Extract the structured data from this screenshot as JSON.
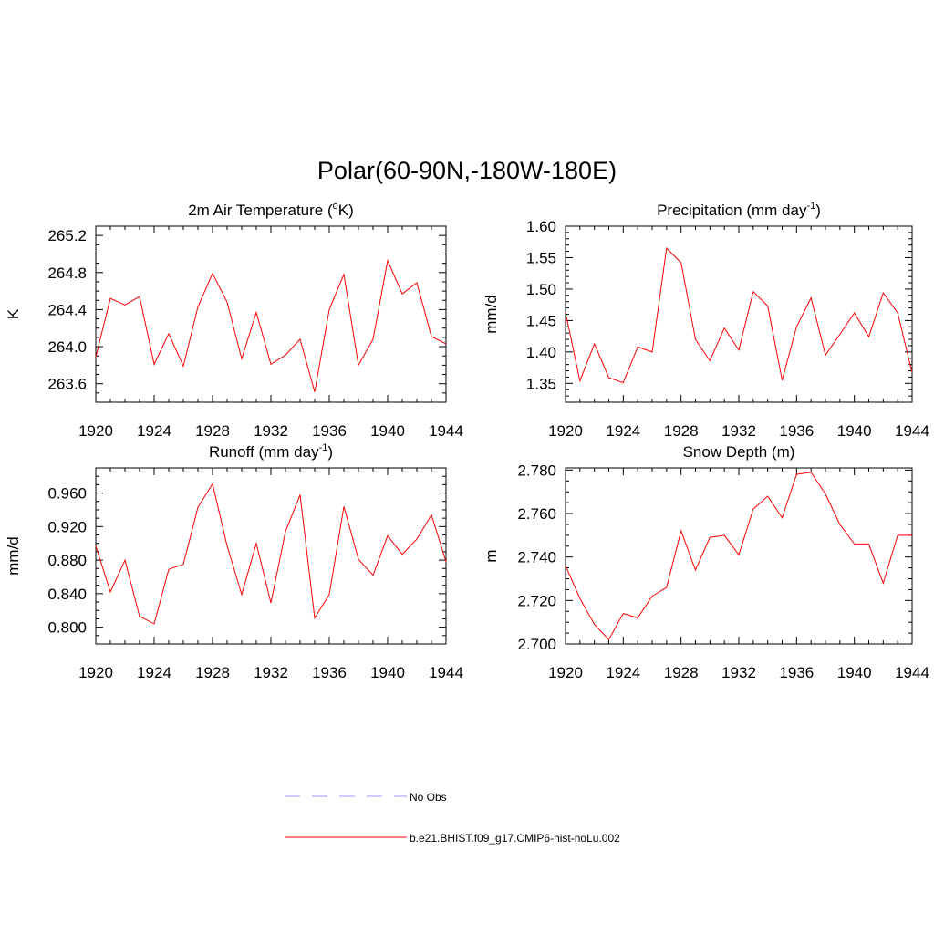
{
  "figure_title": "Polar(60-90N,-180W-180E)",
  "legend": [
    {
      "label": "No Obs",
      "color": "#9999ff",
      "style": "dashed"
    },
    {
      "label": "b.e21.BHIST.f09_g17.CMIP6-hist-noLu.002",
      "color": "#ff0000",
      "style": "solid"
    }
  ],
  "chart_data": [
    {
      "type": "line",
      "title": "2m Air Temperature (",
      "title_sup": "o",
      "title_suffix": "K)",
      "ylabel": "K",
      "xlim": [
        1920,
        1944
      ],
      "ylim": [
        263.4,
        265.3
      ],
      "xticks": [
        1920,
        1924,
        1928,
        1932,
        1936,
        1940,
        1944
      ],
      "xtick_labels": [
        "1920",
        "1924",
        "1928",
        "1932",
        "1936",
        "1940",
        "1944"
      ],
      "yticks": [
        263.6,
        264.0,
        264.4,
        264.8,
        265.2
      ],
      "ytick_labels": [
        "263.6",
        "264.0",
        "264.4",
        "264.8",
        "265.2"
      ],
      "yminor": 0.1,
      "series": [
        {
          "color": "#ff0000",
          "x": [
            1920,
            1921,
            1922,
            1923,
            1924,
            1925,
            1926,
            1927,
            1928,
            1929,
            1930,
            1931,
            1932,
            1933,
            1934,
            1935,
            1936,
            1937,
            1938,
            1939,
            1940,
            1941,
            1942,
            1943,
            1944
          ],
          "y": [
            263.89,
            264.52,
            264.45,
            264.54,
            263.81,
            264.14,
            263.79,
            264.43,
            264.79,
            264.48,
            263.87,
            264.37,
            263.81,
            263.91,
            264.08,
            263.51,
            264.4,
            264.78,
            263.8,
            264.08,
            264.93,
            264.57,
            264.69,
            264.11,
            264.03
          ]
        }
      ]
    },
    {
      "type": "line",
      "title": "Precipitation (mm day",
      "title_sup": "-1",
      "title_suffix": ")",
      "ylabel": "mm/d",
      "xlim": [
        1920,
        1944
      ],
      "ylim": [
        1.32,
        1.6
      ],
      "xticks": [
        1920,
        1924,
        1928,
        1932,
        1936,
        1940,
        1944
      ],
      "xtick_labels": [
        "1920",
        "1924",
        "1928",
        "1932",
        "1936",
        "1940",
        "1944"
      ],
      "yticks": [
        1.35,
        1.4,
        1.45,
        1.5,
        1.55,
        1.6
      ],
      "ytick_labels": [
        "1.35",
        "1.40",
        "1.45",
        "1.50",
        "1.55",
        "1.60"
      ],
      "yminor": 0.01,
      "series": [
        {
          "color": "#ff0000",
          "x": [
            1920,
            1921,
            1922,
            1923,
            1924,
            1925,
            1926,
            1927,
            1928,
            1929,
            1930,
            1931,
            1932,
            1933,
            1934,
            1935,
            1936,
            1937,
            1938,
            1939,
            1940,
            1941,
            1942,
            1943,
            1944
          ],
          "y": [
            1.463,
            1.354,
            1.413,
            1.359,
            1.351,
            1.408,
            1.4,
            1.565,
            1.542,
            1.42,
            1.386,
            1.438,
            1.403,
            1.496,
            1.473,
            1.355,
            1.44,
            1.486,
            1.395,
            1.428,
            1.462,
            1.424,
            1.494,
            1.462,
            1.367
          ]
        }
      ]
    },
    {
      "type": "line",
      "title": "Runoff (mm day",
      "title_sup": "-1",
      "title_suffix": ")",
      "ylabel": "mm/d",
      "xlim": [
        1920,
        1944
      ],
      "ylim": [
        0.78,
        0.99
      ],
      "xticks": [
        1920,
        1924,
        1928,
        1932,
        1936,
        1940,
        1944
      ],
      "xtick_labels": [
        "1920",
        "1924",
        "1928",
        "1932",
        "1936",
        "1940",
        "1944"
      ],
      "yticks": [
        0.8,
        0.84,
        0.88,
        0.92,
        0.96
      ],
      "ytick_labels": [
        "0.800",
        "0.840",
        "0.880",
        "0.920",
        "0.960"
      ],
      "yminor": 0.01,
      "series": [
        {
          "color": "#ff0000",
          "x": [
            1920,
            1921,
            1922,
            1923,
            1924,
            1925,
            1926,
            1927,
            1928,
            1929,
            1930,
            1931,
            1932,
            1933,
            1934,
            1935,
            1936,
            1937,
            1938,
            1939,
            1940,
            1941,
            1942,
            1943,
            1944
          ],
          "y": [
            0.897,
            0.842,
            0.88,
            0.813,
            0.804,
            0.869,
            0.875,
            0.943,
            0.971,
            0.897,
            0.839,
            0.9,
            0.829,
            0.914,
            0.958,
            0.811,
            0.839,
            0.944,
            0.881,
            0.862,
            0.909,
            0.887,
            0.905,
            0.934,
            0.878
          ]
        }
      ]
    },
    {
      "type": "line",
      "title": "Snow Depth (m)",
      "title_sup": "",
      "title_suffix": "",
      "ylabel": "m",
      "xlim": [
        1920,
        1944
      ],
      "ylim": [
        2.7,
        2.781
      ],
      "xticks": [
        1920,
        1924,
        1928,
        1932,
        1936,
        1940,
        1944
      ],
      "xtick_labels": [
        "1920",
        "1924",
        "1928",
        "1932",
        "1936",
        "1940",
        "1944"
      ],
      "yticks": [
        2.7,
        2.72,
        2.74,
        2.76,
        2.78
      ],
      "ytick_labels": [
        "2.700",
        "2.720",
        "2.740",
        "2.760",
        "2.780"
      ],
      "yminor": 0.005,
      "series": [
        {
          "color": "#ff0000",
          "x": [
            1920,
            1921,
            1922,
            1923,
            1924,
            1925,
            1926,
            1927,
            1928,
            1929,
            1930,
            1931,
            1932,
            1933,
            1934,
            1935,
            1936,
            1937,
            1938,
            1939,
            1940,
            1941,
            1942,
            1943,
            1944
          ],
          "y": [
            2.736,
            2.721,
            2.709,
            2.702,
            2.714,
            2.712,
            2.722,
            2.726,
            2.752,
            2.734,
            2.749,
            2.75,
            2.741,
            2.762,
            2.768,
            2.758,
            2.778,
            2.779,
            2.769,
            2.755,
            2.746,
            2.746,
            2.728,
            2.75,
            2.75
          ]
        }
      ]
    }
  ]
}
